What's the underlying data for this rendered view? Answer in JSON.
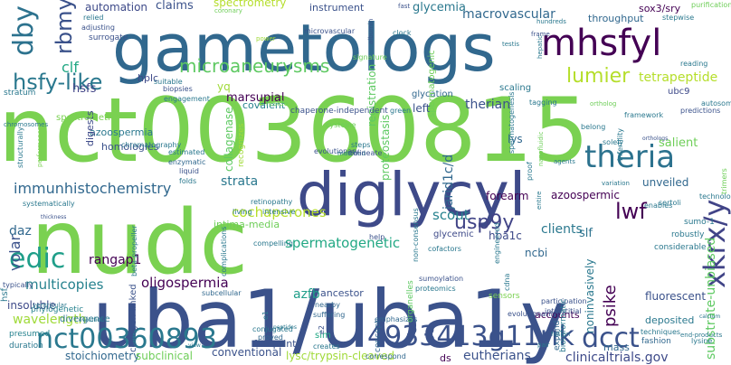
{
  "words": [
    {
      "text": "nct00360815",
      "color": "#7ad151"
    },
    {
      "text": "gametologs",
      "color": "#31688e"
    },
    {
      "text": "nudc",
      "color": "#7ad151"
    },
    {
      "text": "uba1/uba1y",
      "color": "#3b528b"
    },
    {
      "text": "diglycyl",
      "color": "#3e4a89"
    },
    {
      "text": "mhsfyl",
      "color": "#440154"
    },
    {
      "text": "theria",
      "color": "#2c728e"
    },
    {
      "text": "dby",
      "color": "#2c728e"
    },
    {
      "text": "hsfy-like",
      "color": "#2a788e"
    },
    {
      "text": "microaneurysms",
      "color": "#5ec962"
    },
    {
      "text": "rbmy",
      "color": "#3b528b"
    },
    {
      "text": "edic",
      "color": "#1f9e89"
    },
    {
      "text": "nct00360893",
      "color": "#2a788e"
    },
    {
      "text": "4933413g11rik",
      "color": "#3b528b"
    },
    {
      "text": "dcct",
      "color": "#3b528b"
    },
    {
      "text": "xkrx/y",
      "color": "#414487"
    },
    {
      "text": "lumier",
      "color": "#b5de2b"
    },
    {
      "text": "lwf",
      "color": "#440154"
    },
    {
      "text": "usp9y",
      "color": "#414487"
    },
    {
      "text": "clf",
      "color": "#22a884"
    },
    {
      "text": "immunhistochemistry",
      "color": "#31688e"
    },
    {
      "text": "volar",
      "color": "#3b528b"
    },
    {
      "text": "multicopies",
      "color": "#26828e"
    },
    {
      "text": "oligospermia",
      "color": "#440154"
    },
    {
      "text": "spermatogenetic",
      "color": "#22a884"
    },
    {
      "text": "cochaperones",
      "color": "#b5de2b"
    },
    {
      "text": "azfb",
      "color": "#1f9e89"
    },
    {
      "text": "wavelength",
      "color": "#a0da39"
    },
    {
      "text": "eutherians",
      "color": "#3b528b"
    },
    {
      "text": "clinicaltrials.gov",
      "color": "#3e4a89"
    },
    {
      "text": "substrate-unbiased",
      "color": "#5ec962"
    },
    {
      "text": "psike",
      "color": "#440154"
    },
    {
      "text": "tetrapeptide",
      "color": "#b5de2b"
    },
    {
      "text": "therian",
      "color": "#3b528b"
    },
    {
      "text": "scout",
      "color": "#26828e"
    },
    {
      "text": "clients",
      "color": "#2a788e"
    },
    {
      "text": "rangap1",
      "color": "#440154"
    },
    {
      "text": "salient",
      "color": "#6ece58"
    },
    {
      "text": "claims",
      "color": "#3b528b"
    },
    {
      "text": "automation",
      "color": "#3e4a89"
    },
    {
      "text": "macrovascular",
      "color": "#31688e"
    },
    {
      "text": "glycemia",
      "color": "#2a788e"
    },
    {
      "text": "spectrometry",
      "color": "#b5de2b"
    },
    {
      "text": "instrument",
      "color": "#3b528b"
    },
    {
      "text": "throughput",
      "color": "#31688e"
    },
    {
      "text": "sox3/sry",
      "color": "#440154"
    },
    {
      "text": "strata",
      "color": "#2a788e"
    },
    {
      "text": "daz",
      "color": "#31688e"
    },
    {
      "text": "slf",
      "color": "#2c728e"
    },
    {
      "text": "forearm",
      "color": "#440154"
    },
    {
      "text": "azoospermic",
      "color": "#440154"
    },
    {
      "text": "jarid1c/d",
      "color": "#31688e"
    },
    {
      "text": "marsupial",
      "color": "#440154"
    },
    {
      "text": "hsfs",
      "color": "#414487"
    },
    {
      "text": "collagenase",
      "color": "#5ec962"
    },
    {
      "text": "registration",
      "color": "#5ec962"
    },
    {
      "text": "proteostasis",
      "color": "#5ec962"
    },
    {
      "text": "insoluble",
      "color": "#3e4a89"
    },
    {
      "text": "stoichiometry",
      "color": "#31688e"
    },
    {
      "text": "subclinical",
      "color": "#6ece58"
    },
    {
      "text": "conventional",
      "color": "#3b528b"
    },
    {
      "text": "lysc/trypsin-cleaved",
      "color": "#a0da39"
    },
    {
      "text": "footprint",
      "color": "#3b528b"
    },
    {
      "text": "fluorescent",
      "color": "#3b528b"
    },
    {
      "text": "glycemic",
      "color": "#3e4a89"
    },
    {
      "text": "hba1c",
      "color": "#3e4a89"
    },
    {
      "text": "ncbi",
      "color": "#31688e"
    },
    {
      "text": "lys",
      "color": "#31688e"
    },
    {
      "text": "left",
      "color": "#3b528b"
    },
    {
      "text": "homologies",
      "color": "#3b528b"
    },
    {
      "text": "azoospermia",
      "color": "#2a788e"
    },
    {
      "text": "digests",
      "color": "#3e4a89"
    },
    {
      "text": "yq",
      "color": "#a0da39"
    },
    {
      "text": "hplc",
      "color": "#3e4a89"
    },
    {
      "text": "covalent",
      "color": "#26828e"
    },
    {
      "text": "glycation",
      "color": "#31688e"
    },
    {
      "text": "scaling",
      "color": "#2a788e"
    },
    {
      "text": "ubc9",
      "color": "#3e4a89"
    },
    {
      "text": "ancestor",
      "color": "#3b528b"
    },
    {
      "text": "mass",
      "color": "#31688e"
    },
    {
      "text": "accounts",
      "color": "#440154"
    },
    {
      "text": "deposited",
      "color": "#2a788e"
    },
    {
      "text": "divergence",
      "color": "#2a788e"
    },
    {
      "text": "intima-media",
      "color": "#6ece58"
    },
    {
      "text": "spermatogenic",
      "color": "#6ece58"
    },
    {
      "text": "noninvasively",
      "color": "#2a788e"
    },
    {
      "text": "unveiled",
      "color": "#31688e"
    },
    {
      "text": "spectrometric",
      "color": "#7ad151"
    },
    {
      "text": "chromatography",
      "color": "#2a788e"
    },
    {
      "text": "estimated",
      "color": "#2a788e"
    },
    {
      "text": "enzymatic",
      "color": "#31688e"
    },
    {
      "text": "liquid",
      "color": "#3b528b"
    },
    {
      "text": "folds",
      "color": "#2a788e"
    },
    {
      "text": "retinopathy",
      "color": "#2a788e"
    },
    {
      "text": "living",
      "color": "#2a788e"
    },
    {
      "text": "intensive",
      "color": "#2a788e"
    },
    {
      "text": "complications",
      "color": "#2a788e"
    },
    {
      "text": "compelling",
      "color": "#2a788e"
    },
    {
      "text": "beta-propeller",
      "color": "#2a788e"
    },
    {
      "text": "collagen-linked",
      "color": "#3b528b"
    },
    {
      "text": "subcellular",
      "color": "#31688e"
    },
    {
      "text": "proved",
      "color": "#31688e"
    },
    {
      "text": "conjugated",
      "color": "#2a788e"
    },
    {
      "text": "creates",
      "color": "#2a788e"
    },
    {
      "text": "sim",
      "color": "#22a884"
    },
    {
      "text": "correspond",
      "color": "#31688e"
    },
    {
      "text": "ds",
      "color": "#440154"
    },
    {
      "text": "e2",
      "color": "#3b528b"
    },
    {
      "text": "nearby",
      "color": "#31688e"
    },
    {
      "text": "suffering",
      "color": "#31688e"
    },
    {
      "text": "emphasizes",
      "color": "#31688e"
    },
    {
      "text": "organelles",
      "color": "#5ec962"
    },
    {
      "text": "proteomics",
      "color": "#2a788e"
    },
    {
      "text": "sumoylation",
      "color": "#3b528b"
    },
    {
      "text": "cofactors",
      "color": "#2a788e"
    },
    {
      "text": "participation",
      "color": "#3b528b"
    },
    {
      "text": "interstitial",
      "color": "#3b528b"
    },
    {
      "text": "expand",
      "color": "#31688e"
    },
    {
      "text": "concept",
      "color": "#31688e"
    },
    {
      "text": "sensors",
      "color": "#7ad151"
    },
    {
      "text": "presumed",
      "color": "#26828e"
    },
    {
      "text": "duration",
      "color": "#2a788e"
    },
    {
      "text": "evolution",
      "color": "#2a788e"
    },
    {
      "text": "phylogenetic",
      "color": "#26828e"
    },
    {
      "text": "hsf",
      "color": "#2a788e"
    },
    {
      "text": "typically",
      "color": "#3b528b"
    },
    {
      "text": "systematically",
      "color": "#2a788e"
    },
    {
      "text": "structurally",
      "color": "#2a788e"
    },
    {
      "text": "performance",
      "color": "#7ad151"
    },
    {
      "text": "chromosomes",
      "color": "#2a788e"
    },
    {
      "text": "stratum",
      "color": "#2a788e"
    },
    {
      "text": "surrogate",
      "color": "#3b528b"
    },
    {
      "text": "adjusting",
      "color": "#3b528b"
    },
    {
      "text": "relied",
      "color": "#2a788e"
    },
    {
      "text": "suitable",
      "color": "#2a788e"
    },
    {
      "text": "biopsies",
      "color": "#3b528b"
    },
    {
      "text": "engagement",
      "color": "#2a788e"
    },
    {
      "text": "recognizes",
      "color": "#a0da39"
    },
    {
      "text": "reside",
      "color": "#6ece58"
    },
    {
      "text": "chaperone-independent",
      "color": "#3b528b"
    },
    {
      "text": "green",
      "color": "#2a788e"
    },
    {
      "text": "evolutionary",
      "color": "#3b528b"
    },
    {
      "text": "cysteine",
      "color": "#6ece58"
    },
    {
      "text": "matched",
      "color": "#2a788e"
    },
    {
      "text": "steps",
      "color": "#2a788e"
    },
    {
      "text": "delineate",
      "color": "#3b528b"
    },
    {
      "text": "help",
      "color": "#3b528b"
    },
    {
      "text": "non-consensus",
      "color": "#2a788e"
    },
    {
      "text": "engineered",
      "color": "#2a788e"
    },
    {
      "text": "cdna",
      "color": "#2a788e"
    },
    {
      "text": "evolutionarily",
      "color": "#3b528b"
    },
    {
      "text": "bioinformatic",
      "color": "#2a788e"
    },
    {
      "text": "pair",
      "color": "#2a788e"
    },
    {
      "text": "techniques",
      "color": "#2a788e"
    },
    {
      "text": "fashion",
      "color": "#31688e"
    },
    {
      "text": "end-products",
      "color": "#2a788e"
    },
    {
      "text": "lysine",
      "color": "#2a788e"
    },
    {
      "text": "fusion",
      "color": "#2a788e"
    },
    {
      "text": "calcium",
      "color": "#2a788e"
    },
    {
      "text": "considerable",
      "color": "#2a788e"
    },
    {
      "text": "robustly",
      "color": "#2a788e"
    },
    {
      "text": "sumo-1",
      "color": "#2a788e"
    },
    {
      "text": "sertoli",
      "color": "#2a788e"
    },
    {
      "text": "technology",
      "color": "#2a788e"
    },
    {
      "text": "trimers",
      "color": "#6ece58"
    },
    {
      "text": "enables",
      "color": "#2a788e"
    },
    {
      "text": "autosomes",
      "color": "#2a788e"
    },
    {
      "text": "predictions",
      "color": "#3b528b"
    },
    {
      "text": "reading",
      "color": "#2a788e"
    },
    {
      "text": "stepwise",
      "color": "#2a788e"
    },
    {
      "text": "purification",
      "color": "#6ece58"
    },
    {
      "text": "ortholog",
      "color": "#6ece58"
    },
    {
      "text": "orthologs",
      "color": "#3b528b"
    },
    {
      "text": "framework",
      "color": "#2a788e"
    },
    {
      "text": "belong",
      "color": "#2a788e"
    },
    {
      "text": "infertility",
      "color": "#2a788e"
    },
    {
      "text": "solely",
      "color": "#2a788e"
    },
    {
      "text": "spermatogenesis",
      "color": "#2a788e"
    },
    {
      "text": "proof",
      "color": "#2a788e"
    },
    {
      "text": "tagging",
      "color": "#2a788e"
    },
    {
      "text": "hundreds",
      "color": "#2a788e"
    },
    {
      "text": "frame",
      "color": "#3b528b"
    },
    {
      "text": "nanofluidic",
      "color": "#6ece58"
    },
    {
      "text": "hepatic",
      "color": "#2a788e"
    },
    {
      "text": "agents",
      "color": "#2a788e"
    },
    {
      "text": "testis",
      "color": "#2a788e"
    },
    {
      "text": "clock",
      "color": "#2a788e"
    },
    {
      "text": "fast",
      "color": "#3b528b"
    },
    {
      "text": "albumin",
      "color": "#3b528b"
    },
    {
      "text": "signature",
      "color": "#6ece58"
    },
    {
      "text": "microvascular",
      "color": "#3b528b"
    },
    {
      "text": "power",
      "color": "#a0da39"
    },
    {
      "text": "coronary",
      "color": "#6ece58"
    },
    {
      "text": "thickness",
      "color": "#3b528b"
    },
    {
      "text": "ventricular",
      "color": "#2a788e"
    },
    {
      "text": "view",
      "color": "#2a788e"
    },
    {
      "text": "peptides",
      "color": "#2a788e"
    },
    {
      "text": "entire",
      "color": "#2a788e"
    },
    {
      "text": "variation",
      "color": "#2a788e"
    },
    {
      "text": "e1",
      "color": "#2a788e"
    },
    {
      "text": "deciphering",
      "color": "#a0da39"
    }
  ]
}
